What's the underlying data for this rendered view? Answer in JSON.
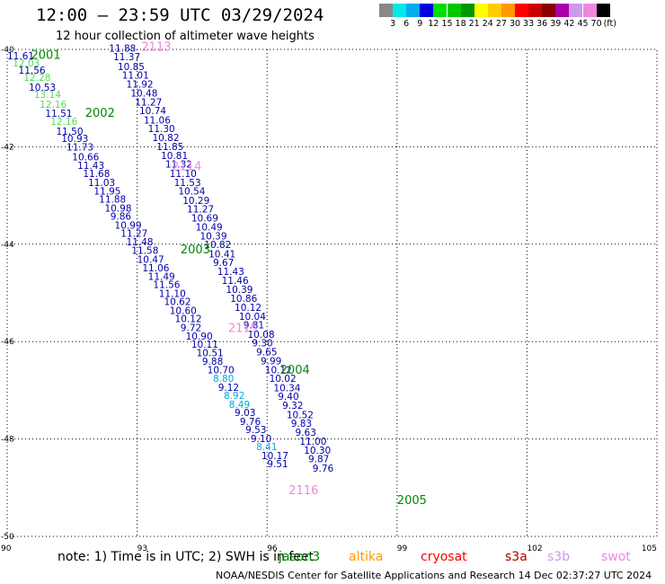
{
  "header": {
    "title": "12:00 – 23:59 UTC 03/29/2024",
    "subtitle": "12 hour collection of altimeter wave heights"
  },
  "colorbar": {
    "unit": "(ft)",
    "labels": [
      "3",
      "6",
      "9",
      "12",
      "15",
      "18",
      "21",
      "24",
      "27",
      "30",
      "33",
      "36",
      "39",
      "42",
      "45",
      "70"
    ],
    "colors": [
      "#888888",
      "#00e8e8",
      "#00aaee",
      "#0000dd",
      "#00dd00",
      "#00c800",
      "#009600",
      "#ffff00",
      "#ffcc00",
      "#ff9900",
      "#ff0000",
      "#cc0000",
      "#880000",
      "#aa00aa",
      "#cc99ee",
      "#ee88dd",
      "#000000"
    ]
  },
  "map": {
    "lon_range": [
      90,
      105
    ],
    "lat_range": [
      -50,
      -40
    ],
    "x_ticks": [
      "90",
      "93",
      "96",
      "99",
      "102",
      "105"
    ],
    "y_ticks": [
      "-40",
      "-42",
      "-44",
      "-46",
      "-48",
      "-50"
    ],
    "grid": "dotted",
    "colors": {
      "dark_blue": "#0000aa",
      "cyan": "#00aadd",
      "light_green": "#55dd55",
      "pink": "#ee88dd",
      "dark_green": "#008800",
      "black": "#000000"
    },
    "pass_labels": [
      {
        "text": "2001",
        "lon": 90.55,
        "lat": -40.19,
        "color": "dark_green"
      },
      {
        "text": "2002",
        "lon": 91.8,
        "lat": -41.38,
        "color": "dark_green"
      },
      {
        "text": "2003",
        "lon": 94.0,
        "lat": -44.19,
        "color": "dark_green"
      },
      {
        "text": "2004",
        "lon": 96.3,
        "lat": -46.66,
        "color": "dark_green"
      },
      {
        "text": "2005",
        "lon": 99.0,
        "lat": -49.34,
        "color": "dark_green"
      },
      {
        "text": "2113",
        "lon": 93.1,
        "lat": -40.03,
        "color": "pink"
      },
      {
        "text": "2114",
        "lon": 93.8,
        "lat": -42.48,
        "color": "pink"
      },
      {
        "text": "2115",
        "lon": 95.1,
        "lat": -45.8,
        "color": "pink"
      },
      {
        "text": "2116",
        "lon": 96.5,
        "lat": -49.13,
        "color": "pink"
      }
    ],
    "swh_labels": [
      {
        "text": "11.61",
        "lon": 90.0,
        "lat": -40.2,
        "color": "dark_blue"
      },
      {
        "text": "12.03",
        "lon": 90.13,
        "lat": -40.35,
        "color": "light_green"
      },
      {
        "text": "11.56",
        "lon": 90.26,
        "lat": -40.5,
        "color": "dark_blue"
      },
      {
        "text": "12.28",
        "lon": 90.38,
        "lat": -40.65,
        "color": "light_green"
      },
      {
        "text": "10.53",
        "lon": 90.5,
        "lat": -40.85,
        "color": "dark_blue"
      },
      {
        "text": "13.14",
        "lon": 90.62,
        "lat": -41.0,
        "color": "light_green"
      },
      {
        "text": "12.16",
        "lon": 90.75,
        "lat": -41.2,
        "color": "light_green"
      },
      {
        "text": "11.51",
        "lon": 90.88,
        "lat": -41.38,
        "color": "dark_blue"
      },
      {
        "text": "12.16",
        "lon": 91.0,
        "lat": -41.55,
        "color": "light_green"
      },
      {
        "text": "11.50",
        "lon": 91.13,
        "lat": -41.75,
        "color": "dark_blue"
      },
      {
        "text": "10.93",
        "lon": 91.25,
        "lat": -41.9,
        "color": "dark_blue"
      },
      {
        "text": "11.73",
        "lon": 91.37,
        "lat": -42.08,
        "color": "dark_blue"
      },
      {
        "text": "10.66",
        "lon": 91.5,
        "lat": -42.28,
        "color": "dark_blue"
      },
      {
        "text": "11.43",
        "lon": 91.62,
        "lat": -42.45,
        "color": "dark_blue"
      },
      {
        "text": "11.68",
        "lon": 91.75,
        "lat": -42.62,
        "color": "dark_blue"
      },
      {
        "text": "11.03",
        "lon": 91.87,
        "lat": -42.8,
        "color": "dark_blue"
      },
      {
        "text": "11.95",
        "lon": 92.0,
        "lat": -42.98,
        "color": "dark_blue"
      },
      {
        "text": "11.88",
        "lon": 92.12,
        "lat": -43.15,
        "color": "dark_blue"
      },
      {
        "text": "10.98",
        "lon": 92.25,
        "lat": -43.33,
        "color": "dark_blue"
      },
      {
        "text": "9.86",
        "lon": 92.38,
        "lat": -43.5,
        "color": "dark_blue"
      },
      {
        "text": "10.99",
        "lon": 92.48,
        "lat": -43.68,
        "color": "dark_blue"
      },
      {
        "text": "11.27",
        "lon": 92.62,
        "lat": -43.85,
        "color": "dark_blue"
      },
      {
        "text": "11.48",
        "lon": 92.75,
        "lat": -44.02,
        "color": "dark_blue"
      },
      {
        "text": "11.58",
        "lon": 92.87,
        "lat": -44.2,
        "color": "dark_blue"
      },
      {
        "text": "10.47",
        "lon": 93.0,
        "lat": -44.38,
        "color": "dark_blue"
      },
      {
        "text": "11.06",
        "lon": 93.12,
        "lat": -44.56,
        "color": "dark_blue"
      },
      {
        "text": "11.49",
        "lon": 93.25,
        "lat": -44.73,
        "color": "dark_blue"
      },
      {
        "text": "11.56",
        "lon": 93.37,
        "lat": -44.9,
        "color": "dark_blue"
      },
      {
        "text": "11.10",
        "lon": 93.5,
        "lat": -45.08,
        "color": "dark_blue"
      },
      {
        "text": "10.62",
        "lon": 93.62,
        "lat": -45.25,
        "color": "dark_blue"
      },
      {
        "text": "10.60",
        "lon": 93.75,
        "lat": -45.43,
        "color": "dark_blue"
      },
      {
        "text": "10.12",
        "lon": 93.87,
        "lat": -45.6,
        "color": "dark_blue"
      },
      {
        "text": "9.72",
        "lon": 94.0,
        "lat": -45.78,
        "color": "dark_blue"
      },
      {
        "text": "10.90",
        "lon": 94.12,
        "lat": -45.96,
        "color": "dark_blue"
      },
      {
        "text": "10.11",
        "lon": 94.25,
        "lat": -46.13,
        "color": "dark_blue"
      },
      {
        "text": "10.51",
        "lon": 94.37,
        "lat": -46.3,
        "color": "dark_blue"
      },
      {
        "text": "9.88",
        "lon": 94.5,
        "lat": -46.48,
        "color": "dark_blue"
      },
      {
        "text": "10.70",
        "lon": 94.62,
        "lat": -46.65,
        "color": "dark_blue"
      },
      {
        "text": "8.80",
        "lon": 94.75,
        "lat": -46.83,
        "color": "cyan"
      },
      {
        "text": "9.12",
        "lon": 94.87,
        "lat": -47.01,
        "color": "dark_blue"
      },
      {
        "text": "8.92",
        "lon": 95.0,
        "lat": -47.18,
        "color": "cyan"
      },
      {
        "text": "8.49",
        "lon": 95.12,
        "lat": -47.36,
        "color": "cyan"
      },
      {
        "text": "9.03",
        "lon": 95.25,
        "lat": -47.53,
        "color": "dark_blue"
      },
      {
        "text": "9.76",
        "lon": 95.37,
        "lat": -47.71,
        "color": "dark_blue"
      },
      {
        "text": "9.53",
        "lon": 95.5,
        "lat": -47.88,
        "color": "dark_blue"
      },
      {
        "text": "9.10",
        "lon": 95.62,
        "lat": -48.06,
        "color": "dark_blue"
      },
      {
        "text": "8.41",
        "lon": 95.75,
        "lat": -48.23,
        "color": "cyan"
      },
      {
        "text": "10.17",
        "lon": 95.87,
        "lat": -48.41,
        "color": "dark_blue"
      },
      {
        "text": "9.51",
        "lon": 96.0,
        "lat": -48.58,
        "color": "dark_blue"
      },
      {
        "text": "11.88",
        "lon": 92.35,
        "lat": -40.05,
        "color": "dark_blue"
      },
      {
        "text": "11.37",
        "lon": 92.45,
        "lat": -40.22,
        "color": "dark_blue"
      },
      {
        "text": "10.85",
        "lon": 92.55,
        "lat": -40.42,
        "color": "dark_blue"
      },
      {
        "text": "11.01",
        "lon": 92.65,
        "lat": -40.6,
        "color": "dark_blue"
      },
      {
        "text": "11.92",
        "lon": 92.75,
        "lat": -40.78,
        "color": "dark_blue"
      },
      {
        "text": "10.48",
        "lon": 92.85,
        "lat": -40.97,
        "color": "dark_blue"
      },
      {
        "text": "11.27",
        "lon": 92.95,
        "lat": -41.15,
        "color": "dark_blue"
      },
      {
        "text": "10.74",
        "lon": 93.05,
        "lat": -41.33,
        "color": "dark_blue"
      },
      {
        "text": "11.06",
        "lon": 93.15,
        "lat": -41.52,
        "color": "dark_blue"
      },
      {
        "text": "11.30",
        "lon": 93.25,
        "lat": -41.7,
        "color": "dark_blue"
      },
      {
        "text": "10.82",
        "lon": 93.35,
        "lat": -41.88,
        "color": "dark_blue"
      },
      {
        "text": "11.85",
        "lon": 93.45,
        "lat": -42.07,
        "color": "dark_blue"
      },
      {
        "text": "10.81",
        "lon": 93.55,
        "lat": -42.25,
        "color": "dark_blue"
      },
      {
        "text": "11.32",
        "lon": 93.65,
        "lat": -42.43,
        "color": "dark_blue"
      },
      {
        "text": "11.10",
        "lon": 93.75,
        "lat": -42.62,
        "color": "dark_blue"
      },
      {
        "text": "11.53",
        "lon": 93.85,
        "lat": -42.8,
        "color": "dark_blue"
      },
      {
        "text": "10.54",
        "lon": 93.95,
        "lat": -42.98,
        "color": "dark_blue"
      },
      {
        "text": "10.29",
        "lon": 94.05,
        "lat": -43.17,
        "color": "dark_blue"
      },
      {
        "text": "11.27",
        "lon": 94.15,
        "lat": -43.35,
        "color": "dark_blue"
      },
      {
        "text": "10.69",
        "lon": 94.25,
        "lat": -43.53,
        "color": "dark_blue"
      },
      {
        "text": "10.49",
        "lon": 94.35,
        "lat": -43.72,
        "color": "dark_blue"
      },
      {
        "text": "10.39",
        "lon": 94.45,
        "lat": -43.9,
        "color": "dark_blue"
      },
      {
        "text": "10.82",
        "lon": 94.55,
        "lat": -44.08,
        "color": "dark_blue"
      },
      {
        "text": "10.41",
        "lon": 94.65,
        "lat": -44.27,
        "color": "dark_blue"
      },
      {
        "text": "9.67",
        "lon": 94.75,
        "lat": -44.45,
        "color": "dark_blue"
      },
      {
        "text": "11.43",
        "lon": 94.85,
        "lat": -44.63,
        "color": "dark_blue"
      },
      {
        "text": "11.46",
        "lon": 94.95,
        "lat": -44.82,
        "color": "dark_blue"
      },
      {
        "text": "10.39",
        "lon": 95.05,
        "lat": -45.0,
        "color": "dark_blue"
      },
      {
        "text": "10.86",
        "lon": 95.15,
        "lat": -45.18,
        "color": "dark_blue"
      },
      {
        "text": "10.12",
        "lon": 95.25,
        "lat": -45.37,
        "color": "dark_blue"
      },
      {
        "text": "10.04",
        "lon": 95.35,
        "lat": -45.55,
        "color": "dark_blue"
      },
      {
        "text": "9.81",
        "lon": 95.45,
        "lat": -45.73,
        "color": "dark_blue"
      },
      {
        "text": "10.08",
        "lon": 95.55,
        "lat": -45.92,
        "color": "dark_blue"
      },
      {
        "text": "9.30",
        "lon": 95.65,
        "lat": -46.1,
        "color": "dark_blue"
      },
      {
        "text": "9.65",
        "lon": 95.75,
        "lat": -46.28,
        "color": "dark_blue"
      },
      {
        "text": "9.99",
        "lon": 95.85,
        "lat": -46.47,
        "color": "dark_blue"
      },
      {
        "text": "10.12",
        "lon": 95.95,
        "lat": -46.65,
        "color": "dark_blue"
      },
      {
        "text": "10.02",
        "lon": 96.05,
        "lat": -46.83,
        "color": "dark_blue"
      },
      {
        "text": "10.34",
        "lon": 96.15,
        "lat": -47.02,
        "color": "dark_blue"
      },
      {
        "text": "9.40",
        "lon": 96.25,
        "lat": -47.2,
        "color": "dark_blue"
      },
      {
        "text": "9.32",
        "lon": 96.35,
        "lat": -47.38,
        "color": "dark_blue"
      },
      {
        "text": "10.52",
        "lon": 96.45,
        "lat": -47.57,
        "color": "dark_blue"
      },
      {
        "text": "9.83",
        "lon": 96.55,
        "lat": -47.75,
        "color": "dark_blue"
      },
      {
        "text": "9.63",
        "lon": 96.65,
        "lat": -47.93,
        "color": "dark_blue"
      },
      {
        "text": "11.00",
        "lon": 96.75,
        "lat": -48.12,
        "color": "dark_blue"
      },
      {
        "text": "10.30",
        "lon": 96.85,
        "lat": -48.3,
        "color": "dark_blue"
      },
      {
        "text": "9.87",
        "lon": 96.95,
        "lat": -48.48,
        "color": "dark_blue"
      },
      {
        "text": "9.76",
        "lon": 97.05,
        "lat": -48.67,
        "color": "dark_blue"
      }
    ]
  },
  "note": {
    "segments": [
      {
        "text": "note:  1) Time is in UTC; 2) SWH is in feet",
        "color": "black"
      },
      {
        "text": "jason3",
        "color": "dark_green"
      },
      {
        "text": "altika",
        "color": "#ff9900"
      },
      {
        "text": "cryosat",
        "color": "#ff0000"
      },
      {
        "text": "s3a",
        "color": "#aa0000"
      },
      {
        "text": "s3b",
        "color": "#cc99ee"
      },
      {
        "text": "swot",
        "color": "#ee88dd"
      }
    ]
  },
  "footer": {
    "credit": "NOAA/NESDIS Center for Satellite Applications and Research    14 Dec 02:37:27 UTC 2024"
  }
}
